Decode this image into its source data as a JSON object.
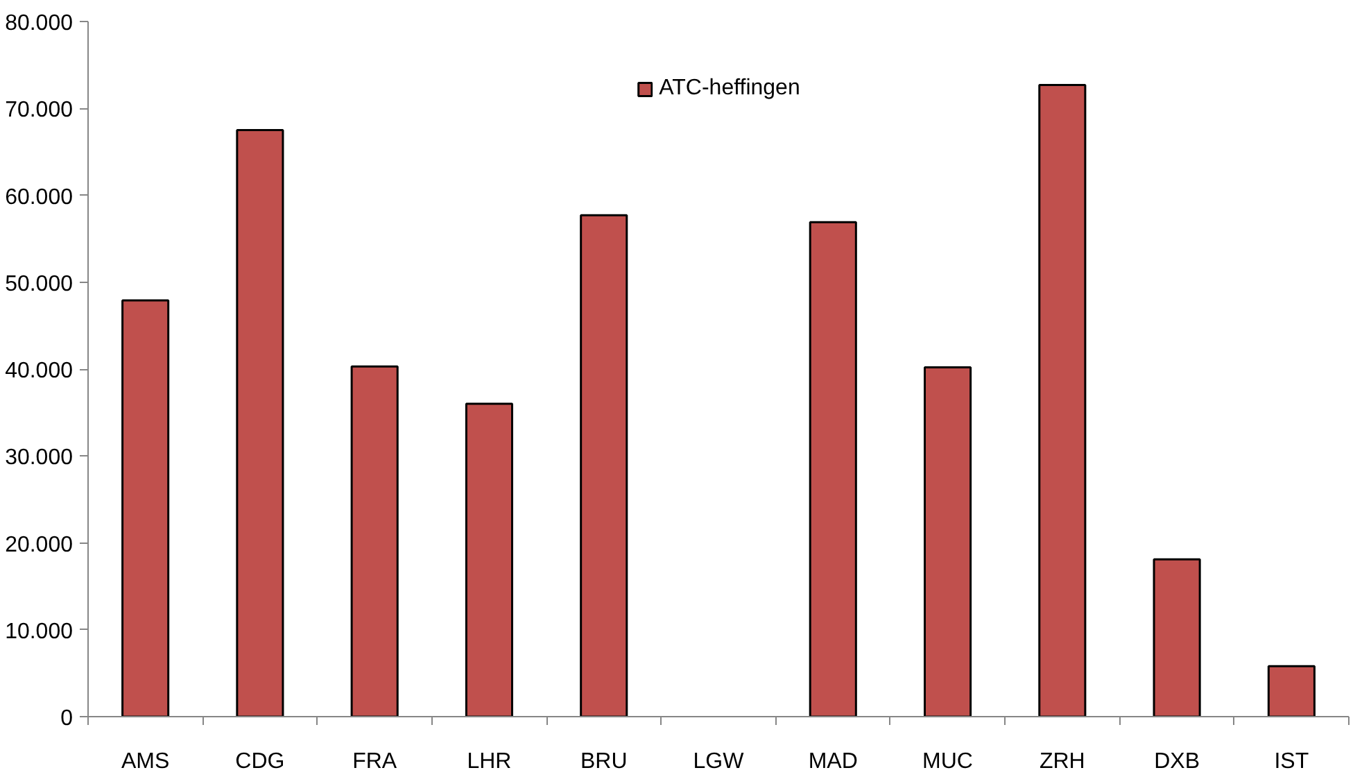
{
  "chart_data": {
    "type": "bar",
    "categories": [
      "AMS",
      "CDG",
      "FRA",
      "LHR",
      "BRU",
      "LGW",
      "MAD",
      "MUC",
      "ZRH",
      "DXB",
      "IST"
    ],
    "series": [
      {
        "name": "ATC-heffingen",
        "color": "#c0504d",
        "values": [
          47900,
          67500,
          40300,
          36000,
          57700,
          null,
          56900,
          40200,
          72700,
          18100,
          5800
        ]
      }
    ],
    "ylim": [
      0,
      80000
    ],
    "yticks": [
      0,
      {
        "value": 10000,
        "label": "10.000"
      },
      {
        "value": 20000,
        "label": "20.000"
      },
      {
        "value": 30000,
        "label": "30.000"
      },
      {
        "value": 40000,
        "label": "40.000"
      },
      {
        "value": 50000,
        "label": "50.000"
      },
      {
        "value": 60000,
        "label": "60.000"
      },
      {
        "value": 70000,
        "label": "70.000"
      },
      {
        "value": 80000,
        "label": "80.000"
      }
    ],
    "grid": false,
    "legend": "top"
  }
}
